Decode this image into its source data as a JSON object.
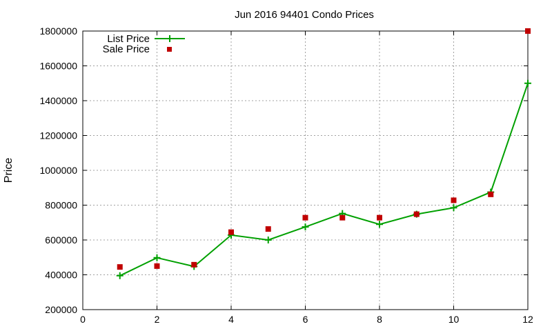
{
  "chart_data": {
    "type": "line",
    "title": "Jun 2016 94401 Condo Prices",
    "xlabel": "",
    "ylabel": "Price",
    "xlim": [
      0,
      12
    ],
    "ylim": [
      200000,
      1800000
    ],
    "xticks": [
      0,
      2,
      4,
      6,
      8,
      10,
      12
    ],
    "yticks": [
      200000,
      400000,
      600000,
      800000,
      1000000,
      1200000,
      1400000,
      1600000,
      1800000
    ],
    "xtick_labels": [
      "0",
      "2",
      "4",
      "6",
      "8",
      "10",
      "12"
    ],
    "ytick_labels": [
      "200000",
      "400000",
      "600000",
      "800000",
      "1000000",
      "1200000",
      "1400000",
      "1600000",
      "1800000"
    ],
    "grid": true,
    "legend_position": "top-left",
    "series": [
      {
        "name": "List Price",
        "style": "line with plus markers",
        "color": "#00a000",
        "x": [
          1,
          2,
          3,
          4,
          5,
          6,
          7,
          8,
          9,
          10,
          11,
          12
        ],
        "y": [
          395000,
          498000,
          448000,
          628000,
          600000,
          675000,
          752000,
          690000,
          748000,
          785000,
          875000,
          1500000
        ]
      },
      {
        "name": "Sale Price",
        "style": "square markers",
        "color": "#c00000",
        "x": [
          1,
          2,
          3,
          4,
          5,
          6,
          7,
          8,
          9,
          10,
          11,
          12
        ],
        "y": [
          445000,
          450000,
          458000,
          645000,
          663000,
          728000,
          728000,
          728000,
          748000,
          828000,
          862000,
          1800000
        ]
      }
    ]
  }
}
